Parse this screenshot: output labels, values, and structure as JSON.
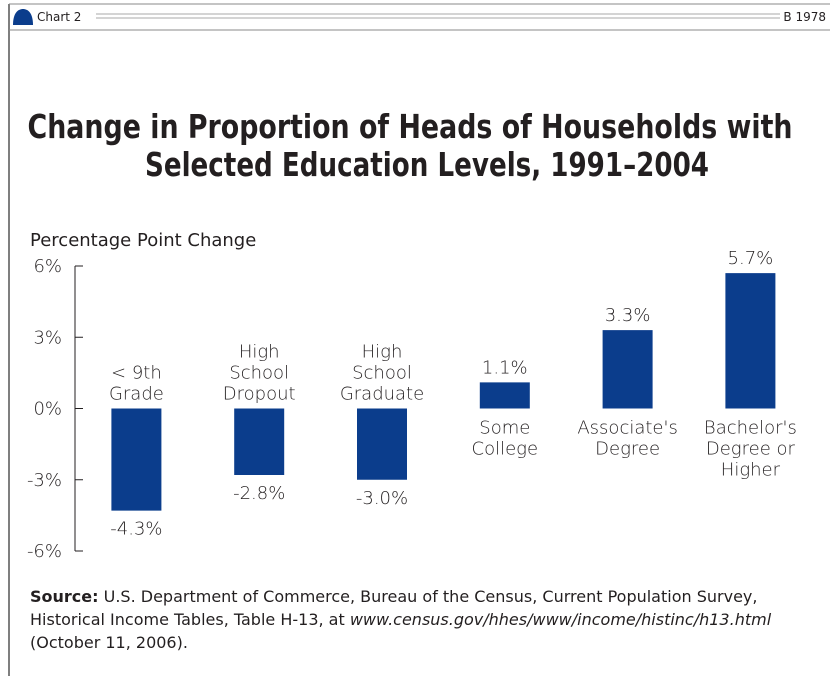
{
  "header": {
    "left": "Chart 2",
    "right": "B 1978"
  },
  "chart_data": {
    "type": "bar",
    "title": [
      "Change in Proportion of Heads of Households with",
      "Selected Education Levels, 1991–2004"
    ],
    "y_label": "Percentage Point Change",
    "categories": [
      [
        "< 9th",
        "Grade"
      ],
      [
        "High",
        "School",
        "Dropout"
      ],
      [
        "High",
        "School",
        "Graduate"
      ],
      [
        "Some",
        "College"
      ],
      [
        "Associate's",
        "Degree"
      ],
      [
        "Bachelor's",
        "Degree or",
        "Higher"
      ]
    ],
    "values": [
      -4.3,
      -2.8,
      -3.0,
      1.1,
      3.3,
      5.7
    ],
    "value_labels": [
      "-4.3%",
      "-2.8%",
      "-3.0%",
      "1.1%",
      "3.3%",
      "5.7%"
    ],
    "color": "#0b3d8c",
    "ylim": [
      -6,
      6
    ],
    "yticks": [
      {
        "value": -6,
        "label": "-6%"
      },
      {
        "value": -3,
        "label": "-3%"
      },
      {
        "value": 0,
        "label": "0%"
      },
      {
        "value": 3,
        "label": "3%"
      },
      {
        "value": 6,
        "label": "6%"
      }
    ]
  },
  "source": {
    "label": "Source:",
    "text": "U.S. Department of Commerce, Bureau of the Census, Current Population Survey, Historical Income Tables, Table H-13, at",
    "url": "www.census.gov/hhes/www/income/histinc/h13.html",
    "date": "(October 11, 2006)."
  }
}
